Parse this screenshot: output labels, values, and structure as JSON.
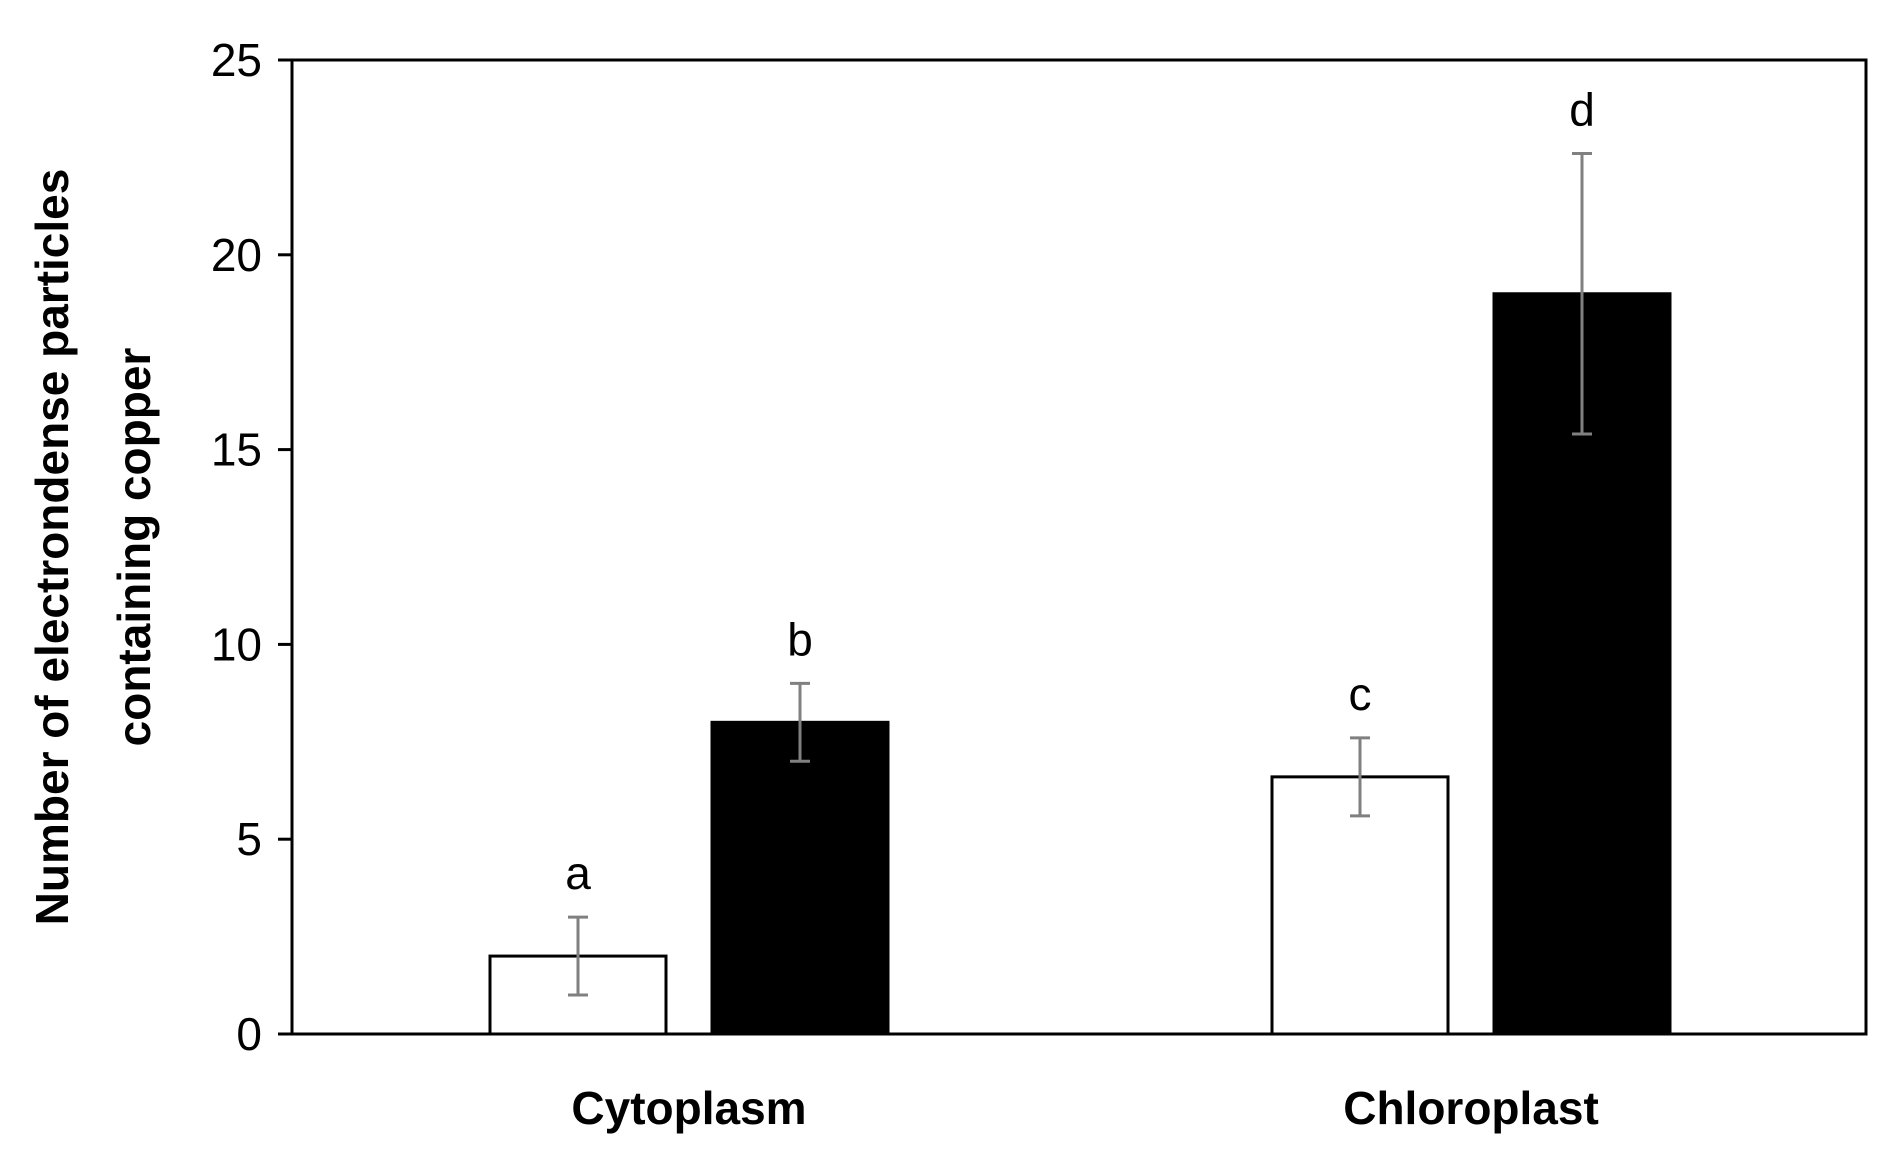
{
  "chart_data": {
    "type": "bar",
    "categories": [
      "Cytoplasm",
      "Chloroplast"
    ],
    "ylabel_lines": [
      "Number of electrondense particles",
      "containing copper"
    ],
    "ylim": [
      0,
      25
    ],
    "yticks": [
      "0",
      "5",
      "10",
      "15",
      "20",
      "25"
    ],
    "grid": false,
    "legend": "none",
    "series": [
      {
        "fill": "#ffffff",
        "values": [
          2,
          6.6
        ],
        "errors": [
          1,
          1
        ],
        "sig_letters": [
          "a",
          "c"
        ]
      },
      {
        "fill": "#000000",
        "values": [
          8,
          19
        ],
        "errors": [
          1,
          3.6
        ],
        "sig_letters": [
          "b",
          "d"
        ]
      }
    ],
    "colors": {
      "axis": "#000000",
      "error_bar": "#808080",
      "bar_stroke": "#000000"
    }
  }
}
